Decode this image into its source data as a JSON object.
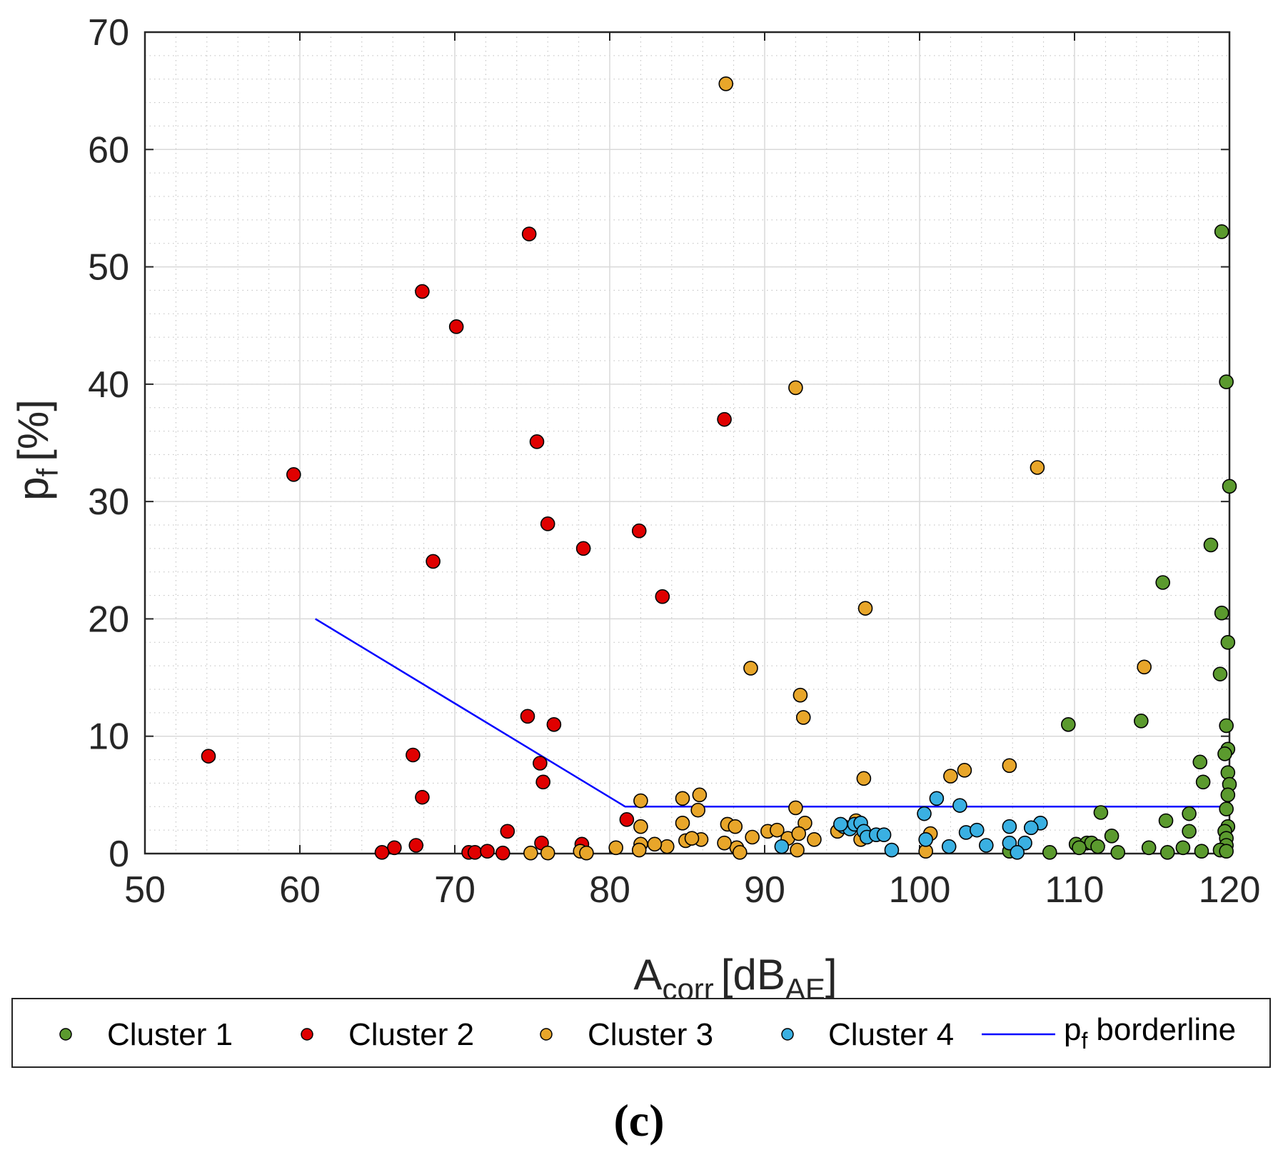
{
  "chart_data": {
    "type": "scatter",
    "title": "",
    "xlabel": "A",
    "xlabel_sub": "corr",
    "xlabel_unit": "[dB",
    "xlabel_unit_sub": "AE",
    "xlabel_close": "]",
    "ylabel": "p",
    "ylabel_sub": "f",
    "ylabel_unit": "[%]",
    "xlim": [
      50,
      120
    ],
    "ylim": [
      0,
      70
    ],
    "xticks": [
      50,
      60,
      70,
      80,
      90,
      100,
      110,
      120
    ],
    "yticks": [
      0,
      10,
      20,
      30,
      40,
      50,
      60,
      70
    ],
    "grid": true,
    "minor_grid": true,
    "legend_position": "bottom-outside",
    "caption": "(c)",
    "series": [
      {
        "name": "Cluster 1",
        "color": "#5b9a2e",
        "points": [
          [
            119.5,
            53
          ],
          [
            119.8,
            40.2
          ],
          [
            120,
            31.3
          ],
          [
            118.8,
            26.3
          ],
          [
            115.7,
            23.1
          ],
          [
            119.5,
            20.5
          ],
          [
            119.9,
            18
          ],
          [
            119.4,
            15.3
          ],
          [
            109.6,
            11
          ],
          [
            114.3,
            11.3
          ],
          [
            119.8,
            10.9
          ],
          [
            119.9,
            8.9
          ],
          [
            119.7,
            8.5
          ],
          [
            118.1,
            7.8
          ],
          [
            118.3,
            6.1
          ],
          [
            119.9,
            6.9
          ],
          [
            120,
            5.9
          ],
          [
            119.9,
            5
          ],
          [
            119.8,
            3.8
          ],
          [
            117.4,
            3.4
          ],
          [
            115.9,
            2.8
          ],
          [
            111.7,
            3.5
          ],
          [
            119.9,
            2.3
          ],
          [
            119.7,
            1.9
          ],
          [
            117.4,
            1.9
          ],
          [
            112.4,
            1.5
          ],
          [
            119.8,
            1.3
          ],
          [
            110.1,
            0.8
          ],
          [
            110.8,
            0.9
          ],
          [
            111.1,
            0.9
          ],
          [
            111.5,
            0.6
          ],
          [
            110.3,
            0.5
          ],
          [
            114.8,
            0.5
          ],
          [
            117,
            0.5
          ],
          [
            119.8,
            0.7
          ],
          [
            108.4,
            0.1
          ],
          [
            112.8,
            0.1
          ],
          [
            116,
            0.1
          ],
          [
            118.2,
            0.2
          ],
          [
            119.4,
            0.3
          ],
          [
            119.8,
            0.2
          ],
          [
            105.8,
            0.2
          ]
        ]
      },
      {
        "name": "Cluster 2",
        "color": "#e00000",
        "points": [
          [
            74.8,
            52.8
          ],
          [
            67.9,
            47.9
          ],
          [
            70.1,
            44.9
          ],
          [
            87.4,
            37
          ],
          [
            75.3,
            35.1
          ],
          [
            59.6,
            32.3
          ],
          [
            76,
            28.1
          ],
          [
            81.9,
            27.5
          ],
          [
            78.3,
            26
          ],
          [
            68.6,
            24.9
          ],
          [
            83.4,
            21.9
          ],
          [
            74.7,
            11.7
          ],
          [
            76.4,
            11
          ],
          [
            54.1,
            8.3
          ],
          [
            67.3,
            8.4
          ],
          [
            75.5,
            7.7
          ],
          [
            75.7,
            6.1
          ],
          [
            67.9,
            4.8
          ],
          [
            81.1,
            2.9
          ],
          [
            73.4,
            1.9
          ],
          [
            66.1,
            0.5
          ],
          [
            67.5,
            0.7
          ],
          [
            65.3,
            0.1
          ],
          [
            70.9,
            0.1
          ],
          [
            71.3,
            0.1
          ],
          [
            72.1,
            0.2
          ],
          [
            73.1,
            0.05
          ],
          [
            75.6,
            0.9
          ],
          [
            78.2,
            0.8
          ]
        ]
      },
      {
        "name": "Cluster 3",
        "color": "#e8a62a",
        "points": [
          [
            87.5,
            65.6
          ],
          [
            92,
            39.7
          ],
          [
            107.6,
            32.9
          ],
          [
            96.5,
            20.9
          ],
          [
            89.1,
            15.8
          ],
          [
            114.5,
            15.9
          ],
          [
            92.3,
            13.5
          ],
          [
            92.5,
            11.6
          ],
          [
            105.8,
            7.5
          ],
          [
            102.9,
            7.1
          ],
          [
            102,
            6.6
          ],
          [
            96.4,
            6.4
          ],
          [
            85.8,
            5
          ],
          [
            84.7,
            4.7
          ],
          [
            82,
            4.5
          ],
          [
            85.7,
            3.7
          ],
          [
            92,
            3.9
          ],
          [
            87.6,
            2.5
          ],
          [
            88.1,
            2.3
          ],
          [
            92.6,
            2.6
          ],
          [
            95.9,
            2.8
          ],
          [
            84.7,
            2.6
          ],
          [
            82,
            2.3
          ],
          [
            90.2,
            1.9
          ],
          [
            90.8,
            2
          ],
          [
            91.5,
            1.3
          ],
          [
            92.2,
            1.7
          ],
          [
            94.7,
            1.9
          ],
          [
            89.2,
            1.4
          ],
          [
            93.2,
            1.2
          ],
          [
            100.7,
            1.7
          ],
          [
            96.2,
            1.2
          ],
          [
            85.9,
            1.2
          ],
          [
            84.9,
            1.1
          ],
          [
            85.3,
            1.3
          ],
          [
            83.7,
            0.6
          ],
          [
            82.9,
            0.8
          ],
          [
            82,
            0.8
          ],
          [
            80.4,
            0.5
          ],
          [
            81.9,
            0.3
          ],
          [
            88.2,
            0.5
          ],
          [
            87.4,
            0.9
          ],
          [
            92.1,
            0.3
          ],
          [
            88.4,
            0.1
          ],
          [
            78.1,
            0.2
          ],
          [
            78.5,
            0.05
          ],
          [
            76,
            0.05
          ],
          [
            74.9,
            0.05
          ],
          [
            100.4,
            0.2
          ]
        ]
      },
      {
        "name": "Cluster 4",
        "color": "#3ab0e2",
        "points": [
          [
            101.1,
            4.7
          ],
          [
            102.6,
            4.1
          ],
          [
            100.3,
            3.4
          ],
          [
            107.8,
            2.6
          ],
          [
            107.2,
            2.2
          ],
          [
            105.8,
            2.3
          ],
          [
            95.1,
            2.3
          ],
          [
            95.5,
            2.1
          ],
          [
            95.8,
            2.5
          ],
          [
            96.2,
            2.6
          ],
          [
            96.4,
            1.9
          ],
          [
            94.9,
            2.5
          ],
          [
            96.6,
            1.4
          ],
          [
            97.2,
            1.6
          ],
          [
            97.7,
            1.6
          ],
          [
            103,
            1.8
          ],
          [
            103.7,
            2
          ],
          [
            100.4,
            1.2
          ],
          [
            101.9,
            0.6
          ],
          [
            104.3,
            0.7
          ],
          [
            105.8,
            0.9
          ],
          [
            106.8,
            0.9
          ],
          [
            91.1,
            0.6
          ],
          [
            98.2,
            0.3
          ],
          [
            106.3,
            0.1
          ]
        ]
      }
    ],
    "lines": [
      {
        "name": "p",
        "name_sub": "f",
        "name_rest": "borderline",
        "color": "#0000ff",
        "points": [
          [
            61,
            20
          ],
          [
            81,
            4
          ],
          [
            120,
            4
          ]
        ]
      }
    ]
  }
}
